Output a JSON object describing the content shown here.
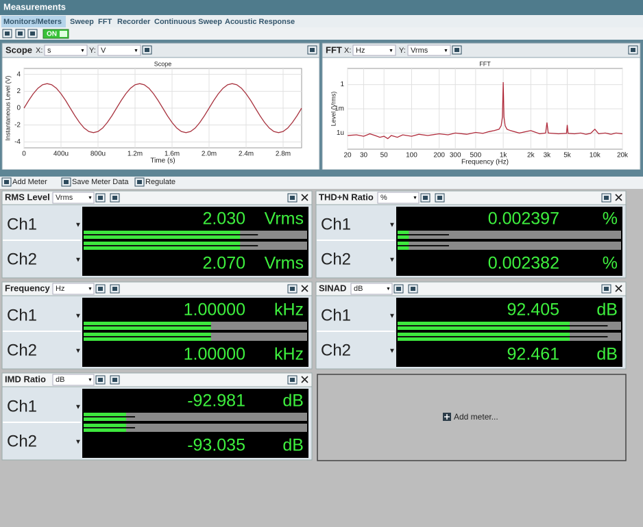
{
  "window_title": "Measurements",
  "tabs": [
    "Monitors/Meters",
    "Sweep",
    "FFT",
    "Recorder",
    "Continuous Sweep",
    "Acoustic Response"
  ],
  "toggle": "ON",
  "panels": [
    {
      "title": "Scope",
      "x_label": "X:",
      "x_unit": "s",
      "y_label": "Y:",
      "y_unit": "V"
    },
    {
      "title": "FFT",
      "x_label": "X:",
      "x_unit": "Hz",
      "y_label": "Y:",
      "y_unit": "Vrms"
    }
  ],
  "chart_data": [
    {
      "type": "line",
      "title": "Scope",
      "x_label": "Time (s)",
      "y_label": "Instantaneous Level (V)",
      "x": [
        0,
        5e-05,
        0.0001,
        0.00015,
        0.0002,
        0.00025,
        0.0003,
        0.00035,
        0.0004,
        0.00045,
        0.0005,
        0.00055,
        0.0006,
        0.00065,
        0.0007,
        0.00075,
        0.0008,
        0.00085,
        0.0009,
        0.00095,
        0.001,
        0.00105,
        0.0011,
        0.00115,
        0.0012,
        0.00125,
        0.0013,
        0.00135,
        0.0014,
        0.00145,
        0.0015,
        0.00155,
        0.0016,
        0.00165,
        0.0017,
        0.00175,
        0.0018,
        0.00185,
        0.0019,
        0.00195,
        0.002,
        0.00205,
        0.0021,
        0.00215,
        0.0022,
        0.00225,
        0.0023,
        0.00235,
        0.0024,
        0.00245,
        0.0025,
        0.00255,
        0.0026,
        0.00265,
        0.0027,
        0.00275,
        0.0028,
        0.00285,
        0.0029,
        0.00295,
        0.003
      ],
      "series": [
        {
          "color": "#a8323e",
          "values": [
            0,
            0.9,
            1.7,
            2.35,
            2.76,
            2.9,
            2.76,
            2.35,
            1.7,
            0.9,
            0,
            -0.9,
            -1.7,
            -2.35,
            -2.76,
            -2.9,
            -2.76,
            -2.35,
            -1.7,
            -0.9,
            0,
            0.9,
            1.7,
            2.35,
            2.76,
            2.9,
            2.76,
            2.35,
            1.7,
            0.9,
            0,
            -0.9,
            -1.7,
            -2.35,
            -2.76,
            -2.9,
            -2.76,
            -2.35,
            -1.7,
            -0.9,
            0,
            0.9,
            1.7,
            2.35,
            2.76,
            2.9,
            2.76,
            2.35,
            1.7,
            0.9,
            0,
            -0.9,
            -1.7,
            -2.35,
            -2.76,
            -2.9,
            -2.76,
            -2.35,
            -1.7,
            -0.9,
            0
          ]
        }
      ],
      "xlim": [
        0,
        0.003
      ],
      "ylim": [
        -4.7,
        4.7
      ],
      "xticks": [
        0,
        {
          "value": 0.0004,
          "label": "400u"
        },
        {
          "value": 0.0008,
          "label": "800u"
        },
        {
          "value": 0.0012,
          "label": "1.2m"
        },
        {
          "value": 0.0016,
          "label": "1.6m"
        },
        {
          "value": 0.002,
          "label": "2.0m"
        },
        {
          "value": 0.0024,
          "label": "2.4m"
        },
        {
          "value": 0.0028,
          "label": "2.8m"
        }
      ],
      "yticks": [
        4,
        2,
        0,
        -2,
        -4
      ],
      "grid": true
    },
    {
      "type": "line",
      "title": "FFT",
      "x_label": "Frequency (Hz)",
      "y_label": "Level (Vrms)",
      "x_scale": "log",
      "y_scale": "log",
      "x": [
        20,
        25,
        30,
        35,
        40,
        45,
        50,
        55,
        60,
        70,
        80,
        100,
        120,
        150,
        200,
        250,
        300,
        400,
        500,
        600,
        700,
        800,
        900,
        950,
        980,
        1000,
        1020,
        1050,
        1100,
        1200,
        1500,
        2000,
        2500,
        2900,
        3000,
        3100,
        4000,
        4900,
        5000,
        5100,
        6000,
        7000,
        8000,
        9000,
        10000,
        11000,
        13000,
        15000,
        17000,
        20000
      ],
      "series": [
        {
          "color": "#b02a3a",
          "values": [
            5e-07,
            6e-07,
            4e-07,
            8e-07,
            5e-07,
            3e-07,
            4e-07,
            2e-07,
            5e-07,
            3e-07,
            6e-07,
            4e-07,
            7e-07,
            5e-07,
            8e-07,
            6e-07,
            1e-06,
            7e-07,
            1.2e-06,
            9e-07,
            1.5e-06,
            2e-06,
            3e-06,
            8e-06,
            0.0001,
            2,
            0.0001,
            8e-06,
            3e-06,
            2e-06,
            1e-06,
            2e-06,
            8e-07,
            1e-06,
            2e-05,
            1e-06,
            8e-07,
            9e-07,
            1e-05,
            9e-07,
            8e-07,
            1e-06,
            7e-07,
            9e-07,
            3e-06,
            8e-07,
            1e-06,
            7e-07,
            1e-06,
            8e-07
          ]
        }
      ],
      "xlim": [
        20,
        20000
      ],
      "ylim": [
        1e-08,
        100
      ],
      "xticks": [
        20,
        30,
        50,
        100,
        200,
        300,
        500,
        {
          "value": 1000,
          "label": "1k"
        },
        {
          "value": 2000,
          "label": "2k"
        },
        {
          "value": 3000,
          "label": "3k"
        },
        {
          "value": 5000,
          "label": "5k"
        },
        {
          "value": 10000,
          "label": "10k"
        },
        {
          "value": 20000,
          "label": "20k"
        }
      ],
      "yticks": [
        1,
        {
          "value": 0.001,
          "label": "1m"
        },
        {
          "value": 1e-06,
          "label": "1u"
        }
      ],
      "grid": true
    }
  ],
  "meter_toolbar": [
    "Add Meter",
    "Save Meter Data",
    "Regulate"
  ],
  "meters": [
    {
      "title": "RMS Level",
      "unit": "Vrms",
      "display_unit": "Vrms",
      "channels": [
        {
          "name": "Ch1",
          "value": 2.03,
          "value_label": "2.030",
          "bar": 70,
          "peak": 78
        },
        {
          "name": "Ch2",
          "value": 2.07,
          "value_label": "2.070",
          "bar": 70,
          "peak": 78
        }
      ]
    },
    {
      "title": "THD+N Ratio",
      "unit": "%",
      "display_unit": "%",
      "channels": [
        {
          "name": "Ch1",
          "value": 0.002397,
          "value_label": "0.002397",
          "bar": 5,
          "peak": 23
        },
        {
          "name": "Ch2",
          "value": 0.002382,
          "value_label": "0.002382",
          "bar": 5,
          "peak": 23
        }
      ]
    },
    {
      "title": "Frequency",
      "unit": "Hz",
      "display_unit": "kHz",
      "channels": [
        {
          "name": "Ch1",
          "value": 1,
          "value_label": "1.00000",
          "bar": 57,
          "peak": 57
        },
        {
          "name": "Ch2",
          "value": 1,
          "value_label": "1.00000",
          "bar": 57,
          "peak": 57
        }
      ]
    },
    {
      "title": "SINAD",
      "unit": "dB",
      "display_unit": "dB",
      "channels": [
        {
          "name": "Ch1",
          "value": 92.405,
          "value_label": "92.405",
          "bar": 77,
          "peak": 94
        },
        {
          "name": "Ch2",
          "value": 92.461,
          "value_label": "92.461",
          "bar": 77,
          "peak": 94
        }
      ]
    },
    {
      "title": "IMD Ratio",
      "unit": "dB",
      "display_unit": "dB",
      "channels": [
        {
          "name": "Ch1",
          "value": -92.981,
          "value_label": "-92.981",
          "bar": 19,
          "peak": 23
        },
        {
          "name": "Ch2",
          "value": -93.035,
          "value_label": "-93.035",
          "bar": 19,
          "peak": 23
        }
      ]
    }
  ],
  "add_meter": "Add meter..."
}
